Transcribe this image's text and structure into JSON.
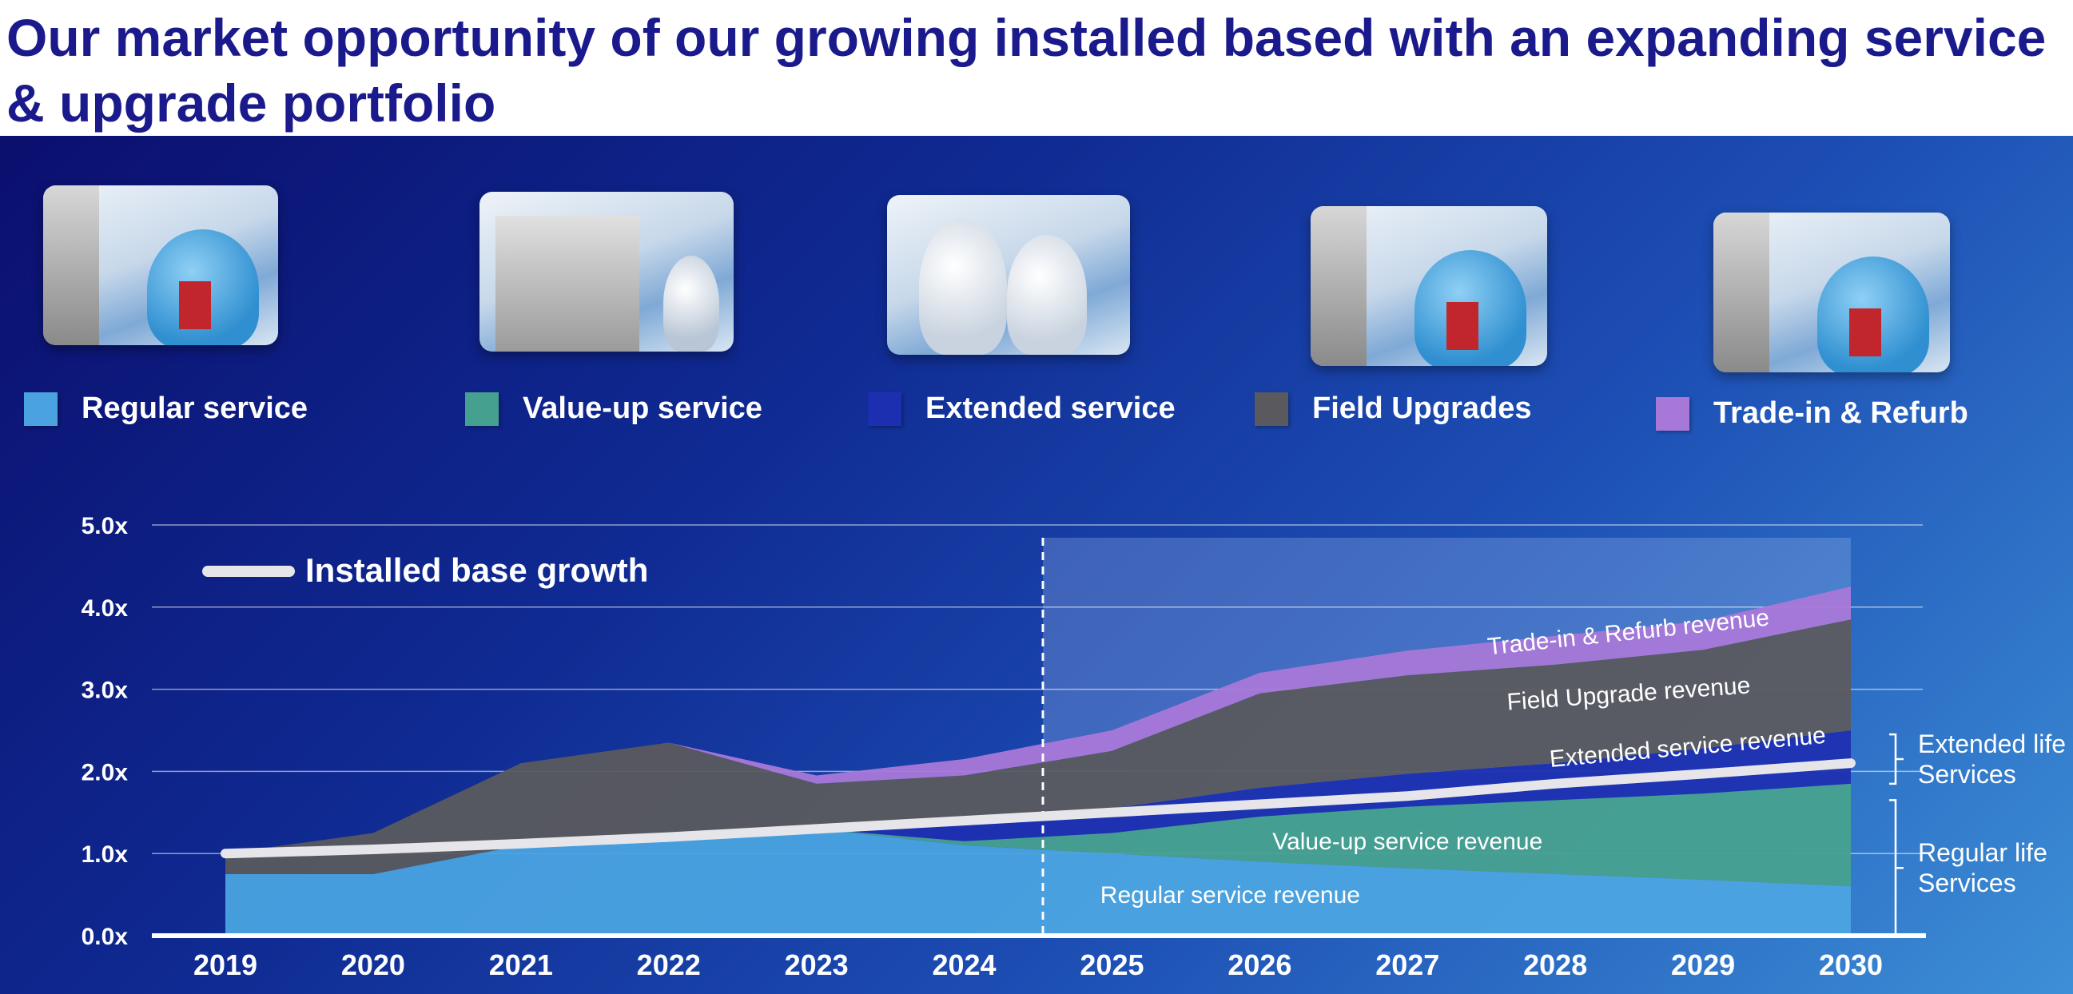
{
  "title": "Our market opportunity of our growing installed based with an expanding service & upgrade portfolio",
  "legend": [
    {
      "label": "Regular service",
      "color": "#4aa3e0",
      "icon": "regular-service-photo"
    },
    {
      "label": "Value-up service",
      "color": "#46a08f",
      "icon": "value-up-service-photo"
    },
    {
      "label": "Extended service",
      "color": "#1c2fb0",
      "icon": "extended-service-photo"
    },
    {
      "label": "Field Upgrades",
      "color": "#5a5a5e",
      "icon": "field-upgrades-photo"
    },
    {
      "label": "Trade-in & Refurb",
      "color": "#a878d8",
      "icon": "trade-in-refurb-photo"
    }
  ],
  "chart_data": {
    "type": "area",
    "categories": [
      "2019",
      "2020",
      "2021",
      "2022",
      "2023",
      "2024",
      "2025",
      "2026",
      "2027",
      "2028",
      "2029",
      "2030"
    ],
    "ylim": [
      0,
      5
    ],
    "y_ticks": [
      "0.0x",
      "1.0x",
      "2.0x",
      "3.0x",
      "4.0x",
      "5.0x"
    ],
    "grid": true,
    "forecast_start": "2025",
    "series": [
      {
        "name": "Regular service revenue",
        "color": "#4aa3e0",
        "values": [
          0.75,
          0.75,
          1.1,
          1.2,
          1.3,
          1.1,
          1.0,
          0.9,
          0.82,
          0.75,
          0.68,
          0.6
        ]
      },
      {
        "name": "Value-up service revenue",
        "color": "#46a08f",
        "values": [
          0,
          0,
          0,
          0,
          0,
          0.05,
          0.25,
          0.55,
          0.75,
          0.9,
          1.05,
          1.25
        ]
      },
      {
        "name": "Extended service revenue",
        "color": "#1c2fb0",
        "values": [
          0,
          0,
          0,
          0,
          0,
          0.2,
          0.3,
          0.35,
          0.4,
          0.45,
          0.55,
          0.65
        ]
      },
      {
        "name": "Field Upgrade revenue",
        "color": "#5a5a5e",
        "values": [
          0.25,
          0.5,
          1.0,
          1.15,
          0.55,
          0.6,
          0.7,
          1.15,
          1.2,
          1.2,
          1.2,
          1.35
        ]
      },
      {
        "name": "Trade-in & Refurb revenue",
        "color": "#a878d8",
        "values": [
          0,
          0,
          0,
          0,
          0.1,
          0.2,
          0.25,
          0.25,
          0.3,
          0.35,
          0.35,
          0.4
        ]
      }
    ],
    "line": {
      "name": "Installed base growth",
      "color": "#e6e6ea",
      "values": [
        1.0,
        1.05,
        1.12,
        1.2,
        1.3,
        1.4,
        1.5,
        1.6,
        1.7,
        1.85,
        1.97,
        2.1
      ]
    },
    "area_labels": [
      {
        "text": "Trade-in & Refurb revenue",
        "x": 2028.5,
        "y": 3.6,
        "rotate": -6
      },
      {
        "text": "Field Upgrade revenue",
        "x": 2028.5,
        "y": 2.85,
        "rotate": -4
      },
      {
        "text": "Extended service revenue",
        "x": 2028.9,
        "y": 2.2,
        "rotate": -5
      },
      {
        "text": "Value-up service revenue",
        "x": 2027.0,
        "y": 1.05,
        "rotate": 0
      },
      {
        "text": "Regular service revenue",
        "x": 2025.8,
        "y": 0.4,
        "rotate": 0
      }
    ],
    "brackets": [
      {
        "label_lines": [
          "Extended life",
          "Services"
        ],
        "y_top": 2.45,
        "y_bottom": 1.85
      },
      {
        "label_lines": [
          "Regular life",
          "Services"
        ],
        "y_top": 1.65,
        "y_bottom": 0.0
      }
    ]
  }
}
